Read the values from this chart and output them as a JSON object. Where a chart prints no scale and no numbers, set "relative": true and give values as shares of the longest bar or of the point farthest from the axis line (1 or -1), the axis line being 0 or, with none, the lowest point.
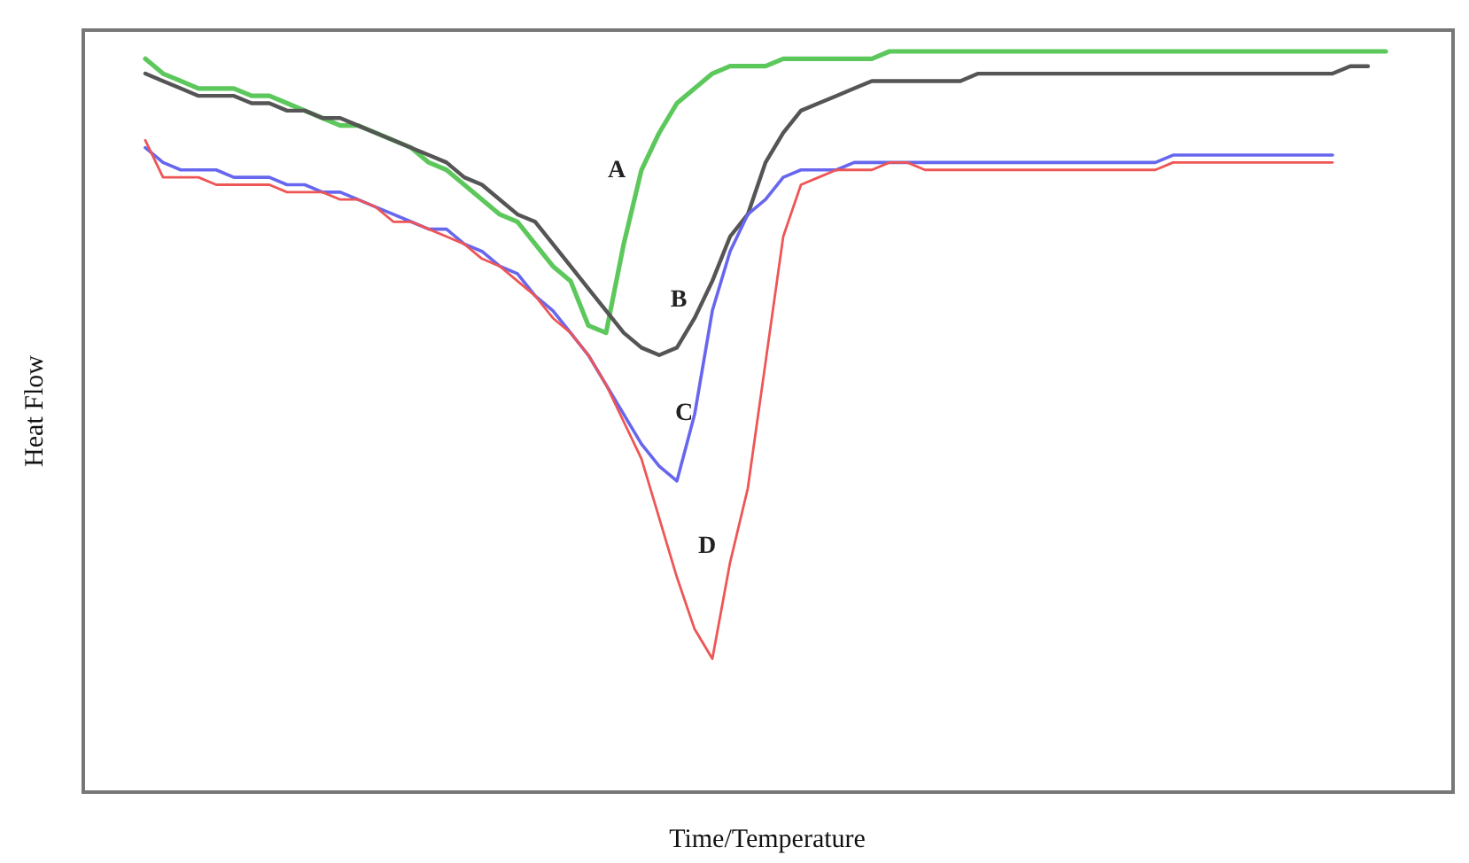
{
  "chart_data": {
    "type": "line",
    "relative": true,
    "xlabel": "Time/Temperature",
    "ylabel": "Heat Flow",
    "line_style": "solid",
    "categories": [
      null,
      null,
      null,
      null,
      null,
      null,
      null,
      null,
      null,
      null,
      null,
      null,
      null,
      null,
      null,
      null,
      null,
      null,
      null,
      null,
      null,
      null,
      null,
      null,
      null,
      null,
      null,
      null,
      null,
      null,
      null,
      null,
      null,
      null,
      null,
      null,
      null,
      null,
      null,
      null,
      null,
      null,
      null,
      null,
      null,
      null,
      null,
      null,
      null,
      null,
      null,
      null,
      null,
      null,
      null,
      null,
      null,
      null,
      null,
      null,
      null,
      null,
      null,
      null,
      null,
      null,
      null,
      null,
      null,
      null,
      null
    ],
    "series": [
      {
        "color": "#5cc85c",
        "values": [
          0.99,
          0.97,
          0.96,
          0.95,
          0.95,
          0.95,
          0.94,
          0.94,
          0.93,
          0.92,
          0.91,
          0.9,
          0.9,
          0.89,
          0.88,
          0.87,
          0.85,
          0.84,
          0.82,
          0.8,
          0.78,
          0.77,
          0.74,
          0.71,
          0.69,
          0.63,
          0.62,
          0.74,
          0.84,
          0.89,
          0.93,
          0.95,
          0.97,
          0.98,
          0.98,
          0.98,
          0.99,
          0.99,
          0.99,
          0.99,
          0.99,
          0.99,
          1.0,
          1.0,
          1.0,
          1.0,
          1.0,
          1.0,
          1.0,
          1.0,
          1.0,
          1.0,
          1.0,
          1.0,
          1.0,
          1.0,
          1.0,
          1.0,
          1.0,
          1.0,
          1.0,
          1.0,
          1.0,
          1.0,
          1.0,
          1.0,
          1.0,
          1.0,
          1.0,
          1.0,
          1.0
        ]
      },
      {
        "color": "#555555",
        "values": [
          0.97,
          0.96,
          0.95,
          0.94,
          0.94,
          0.94,
          0.93,
          0.93,
          0.92,
          0.92,
          0.91,
          0.91,
          0.9,
          0.89,
          0.88,
          0.87,
          0.86,
          0.85,
          0.83,
          0.82,
          0.8,
          0.78,
          0.77,
          0.74,
          0.71,
          0.68,
          0.65,
          0.62,
          0.6,
          0.59,
          0.6,
          0.64,
          0.69,
          0.75,
          0.78,
          0.85,
          0.89,
          0.92,
          0.93,
          0.94,
          0.95,
          0.96,
          0.96,
          0.96,
          0.96,
          0.96,
          0.96,
          0.97,
          0.97,
          0.97,
          0.97,
          0.97,
          0.97,
          0.97,
          0.97,
          0.97,
          0.97,
          0.97,
          0.97,
          0.97,
          0.97,
          0.97,
          0.97,
          0.97,
          0.97,
          0.97,
          0.97,
          0.97,
          0.98,
          0.98,
          null
        ]
      },
      {
        "color": "#6666ee",
        "values": [
          0.87,
          0.85,
          0.84,
          0.84,
          0.84,
          0.83,
          0.83,
          0.83,
          0.82,
          0.82,
          0.81,
          0.81,
          0.8,
          0.79,
          0.78,
          0.77,
          0.76,
          0.76,
          0.74,
          0.73,
          0.71,
          0.7,
          0.67,
          0.65,
          0.62,
          0.59,
          0.55,
          0.51,
          0.47,
          0.44,
          0.42,
          0.51,
          0.65,
          0.73,
          0.78,
          0.8,
          0.83,
          0.84,
          0.84,
          0.84,
          0.85,
          0.85,
          0.85,
          0.85,
          0.85,
          0.85,
          0.85,
          0.85,
          0.85,
          0.85,
          0.85,
          0.85,
          0.85,
          0.85,
          0.85,
          0.85,
          0.85,
          0.85,
          0.86,
          0.86,
          0.86,
          0.86,
          0.86,
          0.86,
          0.86,
          0.86,
          0.86,
          0.86,
          null,
          null,
          null
        ]
      },
      {
        "color": "#ee5555",
        "values": [
          0.88,
          0.83,
          0.83,
          0.83,
          0.82,
          0.82,
          0.82,
          0.82,
          0.81,
          0.81,
          0.81,
          0.8,
          0.8,
          0.79,
          0.77,
          0.77,
          0.76,
          0.75,
          0.74,
          0.72,
          0.71,
          0.69,
          0.67,
          0.64,
          0.62,
          0.59,
          0.55,
          0.5,
          0.45,
          0.37,
          0.29,
          0.22,
          0.18,
          0.31,
          0.41,
          0.58,
          0.75,
          0.82,
          0.83,
          0.84,
          0.84,
          0.84,
          0.85,
          0.85,
          0.84,
          0.84,
          0.84,
          0.84,
          0.84,
          0.84,
          0.84,
          0.84,
          0.84,
          0.84,
          0.84,
          0.84,
          0.84,
          0.84,
          0.85,
          0.85,
          0.85,
          0.85,
          0.85,
          0.85,
          0.85,
          0.85,
          0.85,
          0.85,
          null,
          null,
          null
        ]
      }
    ],
    "annotations": [
      "A",
      "B",
      "C",
      "D"
    ]
  }
}
